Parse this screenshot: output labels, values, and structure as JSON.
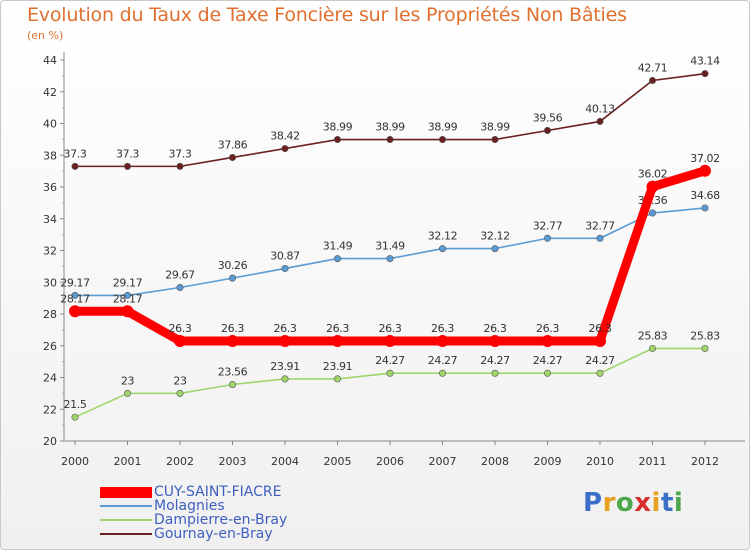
{
  "title": "Evolution du Taux de Taxe Foncière sur les Propriétés Non Bâties",
  "unit_label": "(en %)",
  "logo": {
    "text": "Proxiti",
    "letters": [
      "P",
      "r",
      "o",
      "x",
      "i",
      "t",
      "i"
    ],
    "colors": [
      "#3a6fc8",
      "#e8a020",
      "#4aa84a",
      "#d83030",
      "#e8a020",
      "#3a6fc8",
      "#4aa84a"
    ]
  },
  "chart_data": {
    "type": "line",
    "title": "Evolution du Taux de Taxe Foncière sur les Propriétés Non Bâties",
    "ylabel": "(en %)",
    "xlabel": "",
    "ylim": [
      20,
      44
    ],
    "yticks": [
      20,
      22,
      24,
      26,
      28,
      30,
      32,
      34,
      36,
      38,
      40,
      42,
      44
    ],
    "categories": [
      "2000",
      "2001",
      "2002",
      "2003",
      "2004",
      "2005",
      "2006",
      "2007",
      "2008",
      "2009",
      "2010",
      "2011",
      "2012"
    ],
    "series": [
      {
        "name": "Gournay-en-Bray",
        "color": "#6b2020",
        "values": [
          37.3,
          37.3,
          37.3,
          37.86,
          38.42,
          38.99,
          38.99,
          38.99,
          38.99,
          39.56,
          40.13,
          42.71,
          43.14
        ],
        "labels": [
          "37.3",
          "37.3",
          "37.3",
          "37.86",
          "38.42",
          "38.99",
          "38.99",
          "38.99",
          "38.99",
          "39.56",
          "40.13",
          "42.71",
          "43.14"
        ]
      },
      {
        "name": "Molagnies",
        "color": "#5b9bd5",
        "values": [
          29.17,
          29.17,
          29.67,
          30.26,
          30.87,
          31.49,
          31.49,
          32.12,
          32.12,
          32.77,
          32.77,
          34.36,
          34.68
        ],
        "labels": [
          "29.17",
          "29.17",
          "29.67",
          "30.26",
          "30.87",
          "31.49",
          "31.49",
          "32.12",
          "32.12",
          "32.77",
          "32.77",
          "34.36",
          "34.68"
        ]
      },
      {
        "name": "Dampierre-en-Bray",
        "color": "#9fd56a",
        "values": [
          21.5,
          23,
          23,
          23.56,
          23.91,
          23.91,
          24.27,
          24.27,
          24.27,
          24.27,
          24.27,
          25.83,
          25.83
        ],
        "labels": [
          "21.5",
          "23",
          "23",
          "23.56",
          "23.91",
          "23.91",
          "24.27",
          "24.27",
          "24.27",
          "24.27",
          "24.27",
          "25.83",
          "25.83"
        ]
      },
      {
        "name": "CUY-SAINT-FIACRE",
        "color": "#ff0000",
        "values": [
          28.17,
          28.17,
          26.3,
          26.3,
          26.3,
          26.3,
          26.3,
          26.3,
          26.3,
          26.3,
          26.3,
          36.02,
          37.02
        ],
        "labels": [
          "28.17",
          "28.17",
          "26.3",
          "26.3",
          "26.3",
          "26.3",
          "26.3",
          "26.3",
          "26.3",
          "26.3",
          "26.3",
          "36.02",
          "37.02"
        ]
      }
    ],
    "legend": [
      {
        "name": "CUY-SAINT-FIACRE",
        "color": "#ff0000"
      },
      {
        "name": "Molagnies",
        "color": "#5b9bd5"
      },
      {
        "name": "Dampierre-en-Bray",
        "color": "#9fd56a"
      },
      {
        "name": "Gournay-en-Bray",
        "color": "#6b2020"
      }
    ],
    "legend_position": "bottom-left"
  }
}
